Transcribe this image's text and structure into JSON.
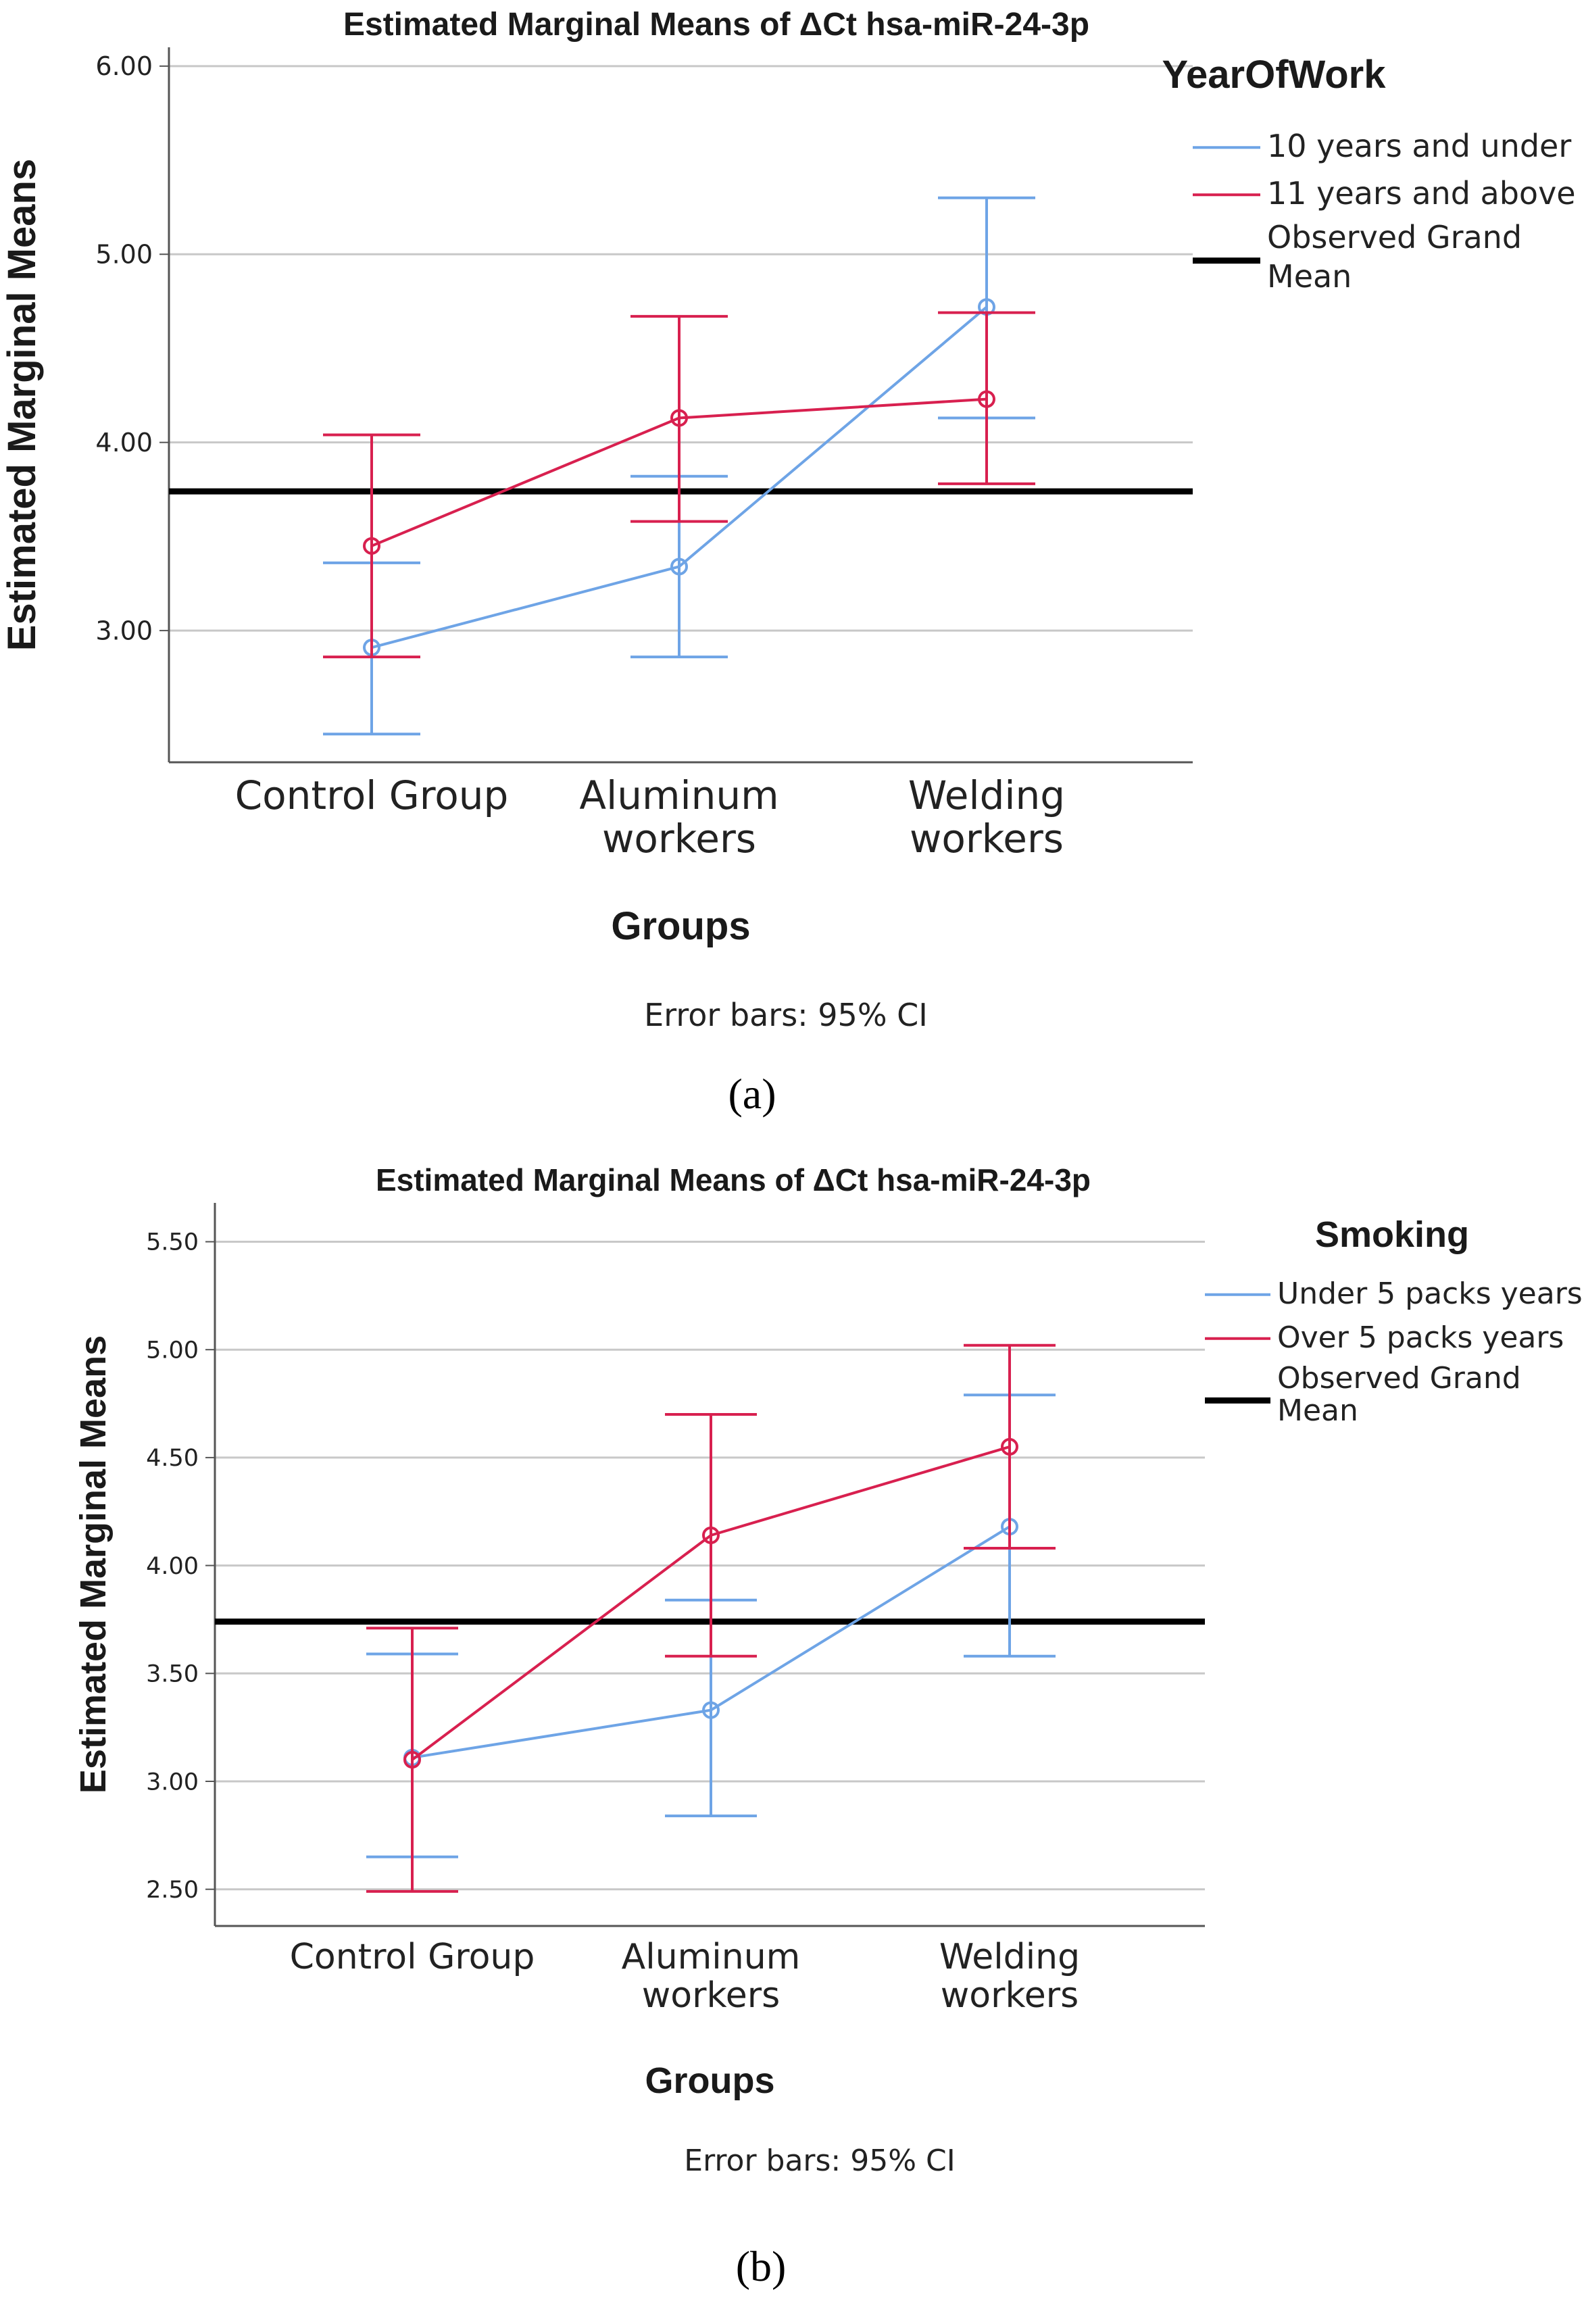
{
  "figure": {
    "panel_labels": [
      "(a)",
      "(b)"
    ]
  },
  "chart_data": [
    {
      "type": "line",
      "title": "Estimated Marginal Means of ΔCt hsa-miR-24-3p",
      "xlabel": "Groups",
      "ylabel": "Estimated Marginal Means",
      "categories": [
        [
          "Control Group"
        ],
        [
          "Aluminum",
          "workers"
        ],
        [
          "Welding",
          "workers"
        ]
      ],
      "yticks": [
        "3.00",
        "4.00",
        "5.00",
        "6.00"
      ],
      "ylim": [
        2.3,
        6.1
      ],
      "grid": true,
      "legend_title": "YearOfWork",
      "legend_position": "right",
      "series": [
        {
          "name": "10 years and under",
          "color": "#6ea4e6",
          "values": [
            2.91,
            3.34,
            4.72
          ],
          "ci_low": [
            2.45,
            2.86,
            4.13
          ],
          "ci_high": [
            3.36,
            3.82,
            5.3
          ]
        },
        {
          "name": "11 years and above",
          "color": "#d8204f",
          "values": [
            3.45,
            4.13,
            4.23
          ],
          "ci_low": [
            2.86,
            3.58,
            3.78
          ],
          "ci_high": [
            4.04,
            4.67,
            4.69
          ]
        }
      ],
      "grand_mean": {
        "label": [
          "Observed Grand",
          "Mean"
        ],
        "value": 3.74,
        "color": "#000000"
      },
      "note": "Error bars: 95% CI"
    },
    {
      "type": "line",
      "title": "Estimated Marginal Means of ΔCt hsa-miR-24-3p",
      "xlabel": "Groups",
      "ylabel": "Estimated Marginal Means",
      "categories": [
        [
          "Control Group"
        ],
        [
          "Aluminum",
          "workers"
        ],
        [
          "Welding",
          "workers"
        ]
      ],
      "yticks": [
        "2.50",
        "3.00",
        "3.50",
        "4.00",
        "4.50",
        "5.00",
        "5.50"
      ],
      "ylim": [
        2.33,
        5.68
      ],
      "grid": true,
      "legend_title": "Smoking",
      "legend_position": "right",
      "series": [
        {
          "name": "Under 5 packs years",
          "color": "#6ea4e6",
          "values": [
            3.11,
            3.33,
            4.18
          ],
          "ci_low": [
            2.65,
            2.84,
            3.58
          ],
          "ci_high": [
            3.59,
            3.84,
            4.79
          ]
        },
        {
          "name": "Over 5 packs years",
          "color": "#d8204f",
          "values": [
            3.1,
            4.14,
            4.55
          ],
          "ci_low": [
            2.49,
            3.58,
            4.08
          ],
          "ci_high": [
            3.71,
            4.7,
            5.02
          ]
        }
      ],
      "grand_mean": {
        "label": [
          "Observed Grand",
          "Mean"
        ],
        "value": 3.74,
        "color": "#000000"
      },
      "note": "Error bars: 95% CI"
    }
  ]
}
